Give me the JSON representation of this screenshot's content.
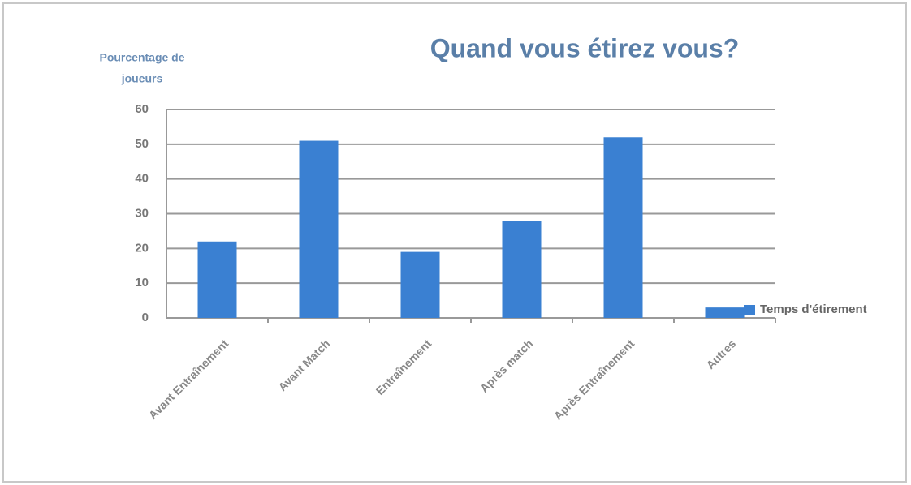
{
  "chart_data": {
    "type": "bar",
    "title": "Quand vous étirez vous?",
    "y_label": [
      "Pourcentage de",
      "joueurs"
    ],
    "categories": [
      "Avant Entraînement",
      "Avant Match",
      "Entraînement",
      "Après match",
      "Après Entraînement",
      "Autres"
    ],
    "series": [
      {
        "name": "Temps d'étirement",
        "color": "#3a80d2",
        "values": [
          22,
          51,
          19,
          28,
          52,
          3
        ]
      }
    ],
    "ylim": [
      0,
      60
    ],
    "yticks": [
      0,
      10,
      20,
      30,
      40,
      50,
      60
    ],
    "grid": true,
    "legend": "right"
  }
}
